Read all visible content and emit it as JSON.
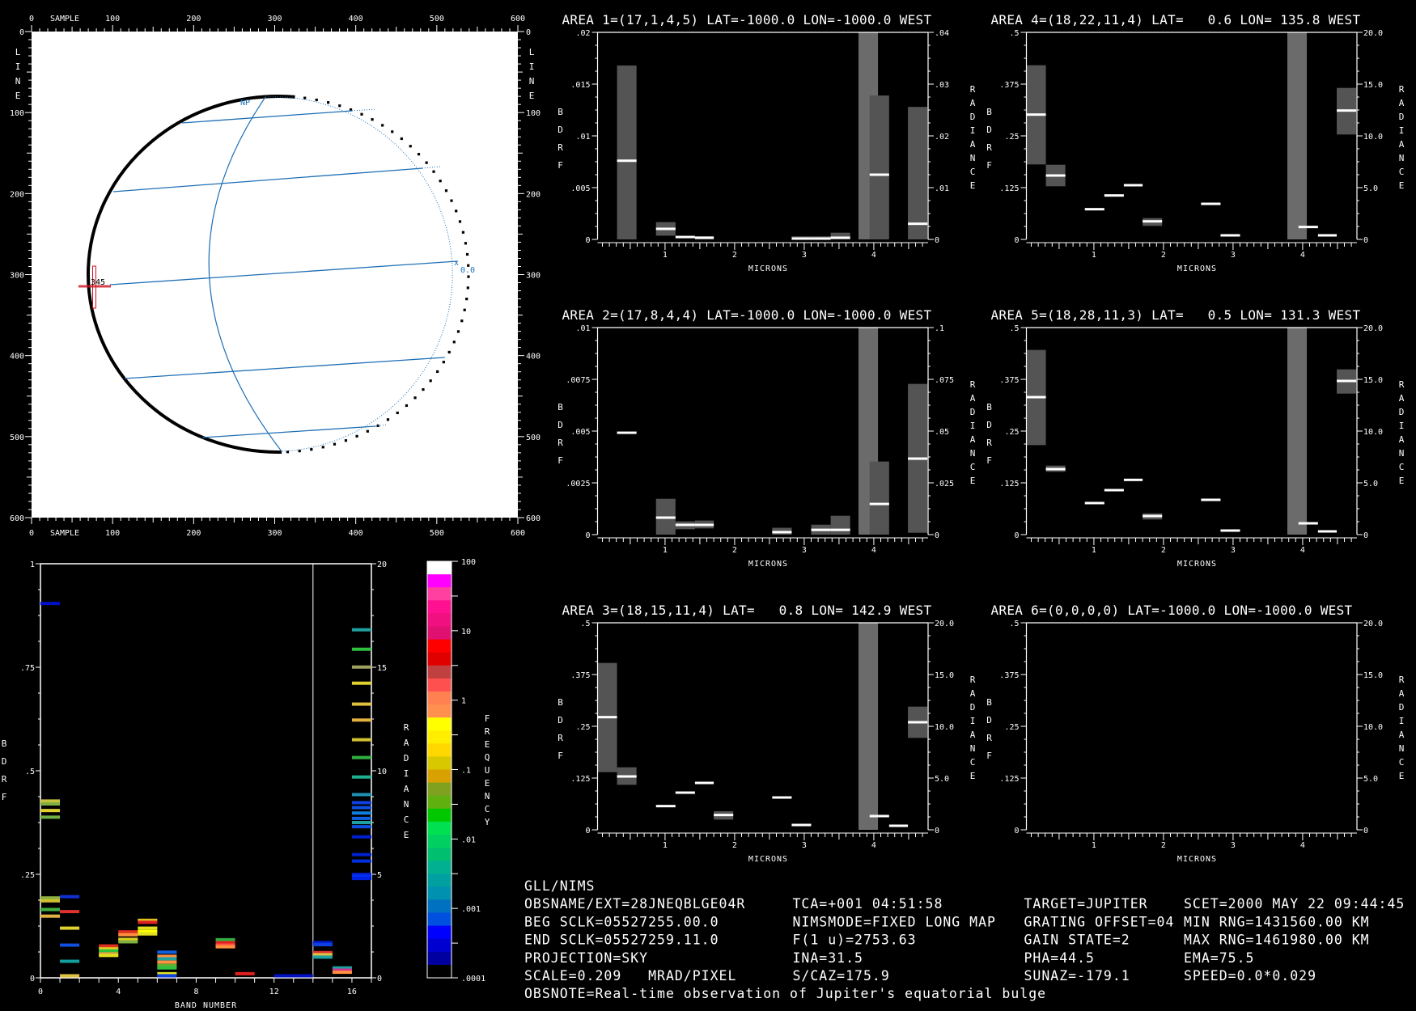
{
  "image_panel": {
    "x_label": "SAMPLE",
    "y_label": "LINE",
    "x_ticks": [
      "0",
      "100",
      "200",
      "300",
      "400",
      "500",
      "600"
    ],
    "y_ticks": [
      "0",
      "100",
      "200",
      "300",
      "400",
      "500",
      "600"
    ],
    "pole_label": "NP",
    "equator_label": "0.0",
    "cursor_label": "345",
    "colors": {
      "background": "#ffffff",
      "limb": "#000000",
      "grid": "#1f6fb5",
      "cursor": "#d01020"
    }
  },
  "histogram": {
    "ylabel": "BDRF",
    "y2label": "RADIANCE",
    "xlabel": "BAND NUMBER",
    "ylim": [
      0,
      1
    ],
    "y2lim": [
      0,
      20
    ],
    "xlim": [
      0,
      17
    ],
    "y_ticks": [
      "0",
      ".25",
      ".5",
      ".75",
      "1"
    ],
    "y2_ticks": [
      "0",
      "5",
      "10",
      "15",
      "20"
    ],
    "x_ticks": [
      "0",
      "4",
      "8",
      "12",
      "16"
    ],
    "radiance_bands_from": 14,
    "bands": [
      {
        "band": 0,
        "stripes": [
          [
            0.904,
            "#0010c8"
          ],
          [
            0.427,
            "#c8c040"
          ],
          [
            0.42,
            "#80b040"
          ],
          [
            0.404,
            "#e0d030"
          ],
          [
            0.388,
            "#70b040"
          ],
          [
            0.193,
            "#90b040"
          ],
          [
            0.186,
            "#d0c030"
          ],
          [
            0.165,
            "#40b040"
          ],
          [
            0.149,
            "#e0b040"
          ]
        ]
      },
      {
        "band": 1,
        "stripes": [
          [
            0.196,
            "#1030d0"
          ],
          [
            0.16,
            "#e03030"
          ],
          [
            0.12,
            "#e0d030"
          ],
          [
            0.079,
            "#1050e0"
          ],
          [
            0.04,
            "#10a0a0"
          ],
          [
            0.005,
            "#e0c040"
          ]
        ]
      },
      {
        "band": 3,
        "stripes": [
          [
            0.077,
            "#e03020"
          ],
          [
            0.07,
            "#e0d020"
          ],
          [
            0.065,
            "#30c040"
          ],
          [
            0.058,
            "#e0a040"
          ],
          [
            0.054,
            "#e0e020"
          ]
        ]
      },
      {
        "band": 4,
        "stripes": [
          [
            0.111,
            "#e03020"
          ],
          [
            0.104,
            "#ff9040"
          ],
          [
            0.093,
            "#e0d020"
          ],
          [
            0.087,
            "#80b040"
          ]
        ]
      },
      {
        "band": 5,
        "stripes": [
          [
            0.139,
            "#e0c020"
          ],
          [
            0.134,
            "#e02020"
          ],
          [
            0.12,
            "#e0e020"
          ],
          [
            0.112,
            "#ffff00"
          ],
          [
            0.106,
            "#e0e020"
          ]
        ]
      },
      {
        "band": 6,
        "stripes": [
          [
            0.062,
            "#1060e0"
          ],
          [
            0.052,
            "#ff9040"
          ],
          [
            0.046,
            "#20a0a0"
          ],
          [
            0.038,
            "#ff9040"
          ],
          [
            0.03,
            "#60b030"
          ],
          [
            0.024,
            "#30c040"
          ],
          [
            0.01,
            "#e0e020"
          ],
          [
            0.005,
            "#1040e0"
          ]
        ]
      },
      {
        "band": 9,
        "stripes": [
          [
            0.092,
            "#30b040"
          ],
          [
            0.085,
            "#e02020"
          ],
          [
            0.079,
            "#ff5040"
          ],
          [
            0.075,
            "#ff9040"
          ]
        ]
      },
      {
        "band": 10,
        "stripes": [
          [
            0.01,
            "#e02020"
          ]
        ]
      },
      {
        "band": 12,
        "stripes": [
          [
            0.005,
            "#0010c0"
          ]
        ]
      },
      {
        "band": 13,
        "stripes": [
          [
            0.005,
            "#0010c0"
          ]
        ]
      },
      {
        "band": 14,
        "stripes": [
          [
            1.7,
            "#0020e0"
          ],
          [
            1.6,
            "#1040e0"
          ],
          [
            1.22,
            "#e03030"
          ],
          [
            1.12,
            "#e0c040"
          ],
          [
            1.0,
            "#20a0a0"
          ]
        ]
      },
      {
        "band": 15,
        "stripes": [
          [
            0.48,
            "#20a0a0"
          ],
          [
            0.37,
            "#d03090"
          ],
          [
            0.27,
            "#ff9040"
          ]
        ]
      },
      {
        "band": 16,
        "stripes": [
          [
            16.81,
            "#20a0a0"
          ],
          [
            15.87,
            "#30c040"
          ],
          [
            15.01,
            "#a0a060"
          ],
          [
            14.23,
            "#e0d030"
          ],
          [
            13.22,
            "#e0c040"
          ],
          [
            12.45,
            "#e0b040"
          ],
          [
            11.5,
            "#d0c030"
          ],
          [
            10.64,
            "#30b040"
          ],
          [
            9.7,
            "#20b090"
          ],
          [
            8.85,
            "#2090b0"
          ],
          [
            8.46,
            "#1040e0"
          ],
          [
            8.22,
            "#1050e0"
          ],
          [
            7.96,
            "#1080e0"
          ],
          [
            7.7,
            "#1060e0"
          ],
          [
            7.5,
            "#20a0a0"
          ],
          [
            7.3,
            "#1050e0"
          ],
          [
            6.81,
            "#0020d0"
          ],
          [
            5.95,
            "#0020d0"
          ],
          [
            5.64,
            "#0030e0"
          ],
          [
            4.99,
            "#0020e0"
          ],
          [
            4.9,
            "#0030f0"
          ],
          [
            4.8,
            "#0020e0"
          ]
        ]
      }
    ]
  },
  "colorbar": {
    "label": "FREQUENCY",
    "scale": "log",
    "ticks": [
      "100",
      "10",
      "1",
      ".1",
      ".01",
      ".001",
      ".0001"
    ],
    "colors": [
      "#ffffff",
      "#ff00ff",
      "#ff40a0",
      "#ff1090",
      "#f01080",
      "#e01070",
      "#ff0000",
      "#e00000",
      "#c04040",
      "#ff5050",
      "#ff8050",
      "#ff9050",
      "#ffff00",
      "#ffee00",
      "#ffd800",
      "#d8c800",
      "#d8a000",
      "#80a020",
      "#60b010",
      "#00c800",
      "#00e050",
      "#00d060",
      "#00c070",
      "#00b090",
      "#00a0a0",
      "#0090b0",
      "#0070c0",
      "#0050e0",
      "#0000ff",
      "#0000d0",
      "#0000a0",
      "#000000"
    ]
  },
  "chart_data": [
    {
      "type": "bar",
      "title": "AREA 1=(17,1,4,5) LAT=-1000.0 LON=-1000.0 WEST",
      "xlabel": "MICRONS",
      "ylabel": "BDRF",
      "y2label": "RADIANCE",
      "xlim": [
        0.03,
        4.78
      ],
      "ylim": [
        0,
        0.02
      ],
      "y2lim": [
        0,
        0.04
      ],
      "x_ticks": [
        "1",
        "2",
        "3",
        "4"
      ],
      "y_ticks": [
        "0",
        ".005",
        ".01",
        ".015",
        ".02"
      ],
      "y2_ticks": [
        "0",
        ".01",
        ".02",
        ".03",
        ".04"
      ],
      "bars": [
        {
          "x": [
            0.31,
            0.59
          ],
          "min": 0,
          "max": 0.0168,
          "mean": 0.0076
        },
        {
          "x": [
            0.87,
            1.15
          ],
          "min": 0.00036,
          "max": 0.00167,
          "mean": 0.00102
        },
        {
          "x": [
            1.15,
            1.43
          ],
          "mean": 0.00023
        },
        {
          "x": [
            1.43,
            1.7
          ],
          "min": 0,
          "max": 0.0003,
          "mean": 0.00016
        },
        {
          "x": [
            2.82,
            3.1
          ],
          "min": 0,
          "max": 0.0003,
          "mean": 8e-05
        },
        {
          "x": [
            3.1,
            3.38
          ],
          "min": 0,
          "max": 0.0003,
          "mean": 8e-05
        },
        {
          "x": [
            3.38,
            3.66
          ],
          "min": 0,
          "max": 0.00065,
          "mean": 0.00016
        },
        {
          "x": [
            3.78,
            4.06
          ],
          "min": 0,
          "max": 0.02,
          "saturated": true
        },
        {
          "x": [
            3.94,
            4.22
          ],
          "min": 0,
          "max": 0.0139,
          "mean": 0.00625
        },
        {
          "x": [
            4.49,
            4.77
          ],
          "min": 0,
          "max": 0.0128,
          "mean": 0.00151
        }
      ]
    },
    {
      "type": "bar",
      "title": "AREA 2=(17,8,4,4) LAT=-1000.0 LON=-1000.0 WEST",
      "xlabel": "MICRONS",
      "ylabel": "BDRF",
      "y2label": "RADIANCE",
      "xlim": [
        0.03,
        4.78
      ],
      "ylim": [
        0,
        0.01
      ],
      "y2lim": [
        0,
        0.1
      ],
      "x_ticks": [
        "1",
        "2",
        "3",
        "4"
      ],
      "y_ticks": [
        "0",
        ".0025",
        ".005",
        ".0075",
        ".01"
      ],
      "y2_ticks": [
        "0",
        ".025",
        ".05",
        ".075",
        ".1"
      ],
      "bars": [
        {
          "x": [
            0.31,
            0.59
          ],
          "mean": 0.00492
        },
        {
          "x": [
            0.87,
            1.15
          ],
          "min": 0,
          "max": 0.00173,
          "mean": 0.00082
        },
        {
          "x": [
            1.15,
            1.43
          ],
          "min": 0.00026,
          "max": 0.00064,
          "mean": 0.00047
        },
        {
          "x": [
            1.43,
            1.7
          ],
          "min": 0.0003,
          "max": 0.00068,
          "mean": 0.00047
        },
        {
          "x": [
            2.54,
            2.82
          ],
          "min": 0,
          "max": 0.00033,
          "mean": 0.00012
        },
        {
          "x": [
            3.1,
            3.38
          ],
          "min": 0,
          "max": 0.00048,
          "mean": 0.00023
        },
        {
          "x": [
            3.38,
            3.66
          ],
          "min": 0,
          "max": 0.00091,
          "mean": 0.00023
        },
        {
          "x": [
            3.78,
            4.06
          ],
          "min": 0,
          "max": 0.01,
          "saturated": true
        },
        {
          "x": [
            3.94,
            4.22
          ],
          "min": 0,
          "max": 0.00353,
          "mean": 0.00148
        },
        {
          "x": [
            4.49,
            4.77
          ],
          "min": 9e-05,
          "max": 0.00728,
          "mean": 0.00367
        }
      ]
    },
    {
      "type": "bar",
      "title": "AREA 3=(18,15,11,4) LAT=   0.8 LON= 142.9 WEST",
      "xlabel": "MICRONS",
      "ylabel": "BDRF",
      "y2label": "RADIANCE",
      "xlim": [
        0.03,
        4.78
      ],
      "ylim": [
        0,
        0.5
      ],
      "y2lim": [
        0,
        20
      ],
      "x_ticks": [
        "1",
        "2",
        "3",
        "4"
      ],
      "y_ticks": [
        "0",
        ".125",
        ".25",
        ".375",
        ".5"
      ],
      "y2_ticks": [
        "0",
        "5.0",
        "10.0",
        "15.0",
        "20.0"
      ],
      "bars": [
        {
          "x": [
            0.03,
            0.31
          ],
          "min": 0.1393,
          "max": 0.403,
          "mean": 0.2721
        },
        {
          "x": [
            0.31,
            0.59
          ],
          "min": 0.1087,
          "max": 0.151,
          "mean": 0.1289
        },
        {
          "x": [
            0.87,
            1.15
          ],
          "mean": 0.0573
        },
        {
          "x": [
            1.15,
            1.43
          ],
          "mean": 0.0898
        },
        {
          "x": [
            1.43,
            1.7
          ],
          "mean": 0.1133
        },
        {
          "x": [
            1.7,
            1.98
          ],
          "min": 0.0247,
          "max": 0.0449,
          "mean": 0.0358
        },
        {
          "x": [
            2.54,
            2.82
          ],
          "mean": 0.0781
        },
        {
          "x": [
            2.82,
            3.1
          ],
          "mean": 0.0117
        },
        {
          "x": [
            3.78,
            4.06
          ],
          "min": 0,
          "max": 0.5,
          "saturated": true
        },
        {
          "x": [
            3.94,
            4.22
          ],
          "mean": 0.0332
        },
        {
          "x": [
            4.22,
            4.49
          ],
          "mean": 0.0098
        },
        {
          "x": [
            4.49,
            4.77
          ],
          "min": 0.222,
          "max": 0.2975,
          "mean": 0.2598
        }
      ]
    },
    {
      "type": "bar",
      "title": "AREA 4=(18,22,11,4) LAT=   0.6 LON= 135.8 WEST",
      "xlabel": "MICRONS",
      "ylabel": "BDRF",
      "y2label": "RADIANCE",
      "xlim": [
        0.03,
        4.78
      ],
      "ylim": [
        0,
        0.5
      ],
      "y2lim": [
        0,
        20
      ],
      "x_ticks": [
        "1",
        "2",
        "3",
        "4"
      ],
      "y_ticks": [
        "0",
        ".125",
        ".25",
        ".375",
        ".5"
      ],
      "y2_ticks": [
        "0",
        "5.0",
        "10.0",
        "15.0",
        "20.0"
      ],
      "bars": [
        {
          "x": [
            0.03,
            0.31
          ],
          "min": 0.181,
          "max": 0.4206,
          "mean": 0.3014
        },
        {
          "x": [
            0.31,
            0.59
          ],
          "min": 0.1283,
          "max": 0.1803,
          "mean": 0.1543
        },
        {
          "x": [
            0.87,
            1.15
          ],
          "mean": 0.0729
        },
        {
          "x": [
            1.15,
            1.43
          ],
          "mean": 0.1061
        },
        {
          "x": [
            1.43,
            1.7
          ],
          "mean": 0.1309
        },
        {
          "x": [
            1.7,
            1.98
          ],
          "min": 0.0326,
          "max": 0.0514,
          "mean": 0.0436
        },
        {
          "x": [
            2.54,
            2.82
          ],
          "mean": 0.0859
        },
        {
          "x": [
            2.82,
            3.1
          ],
          "mean": 0.0098
        },
        {
          "x": [
            3.78,
            4.06
          ],
          "min": 0,
          "max": 0.5,
          "saturated": true
        },
        {
          "x": [
            3.94,
            4.22
          ],
          "mean": 0.03
        },
        {
          "x": [
            4.22,
            4.49
          ],
          "mean": 0.0098
        },
        {
          "x": [
            4.49,
            4.77
          ],
          "min": 0.2533,
          "max": 0.3659,
          "mean": 0.3112
        }
      ]
    },
    {
      "type": "bar",
      "title": "AREA 5=(18,28,11,3) LAT=   0.5 LON= 131.3 WEST",
      "xlabel": "MICRONS",
      "ylabel": "BDRF",
      "y2label": "RADIANCE",
      "xlim": [
        0.03,
        4.78
      ],
      "ylim": [
        0,
        0.5
      ],
      "y2lim": [
        0,
        20
      ],
      "x_ticks": [
        "1",
        "2",
        "3",
        "4"
      ],
      "y_ticks": [
        "0",
        ".125",
        ".25",
        ".375",
        ".5"
      ],
      "y2_ticks": [
        "0",
        "5.0",
        "10.0",
        "15.0",
        "20.0"
      ],
      "bars": [
        {
          "x": [
            0.03,
            0.31
          ],
          "min": 0.2161,
          "max": 0.446,
          "mean": 0.332
        },
        {
          "x": [
            0.31,
            0.59
          ],
          "min": 0.1517,
          "max": 0.1667,
          "mean": 0.1582
        },
        {
          "x": [
            0.87,
            1.15
          ],
          "mean": 0.0762
        },
        {
          "x": [
            1.15,
            1.43
          ],
          "mean": 0.1074
        },
        {
          "x": [
            1.43,
            1.7
          ],
          "mean": 0.1322
        },
        {
          "x": [
            1.7,
            1.98
          ],
          "min": 0.0365,
          "max": 0.0514,
          "mean": 0.0449
        },
        {
          "x": [
            2.54,
            2.82
          ],
          "mean": 0.084
        },
        {
          "x": [
            2.82,
            3.1
          ],
          "mean": 0.0098
        },
        {
          "x": [
            3.78,
            4.06
          ],
          "min": 0,
          "max": 0.5,
          "saturated": true
        },
        {
          "x": [
            3.94,
            4.22
          ],
          "mean": 0.0273
        },
        {
          "x": [
            4.22,
            4.49
          ],
          "mean": 0.0078
        },
        {
          "x": [
            4.49,
            4.77
          ],
          "min": 0.3405,
          "max": 0.3991,
          "mean": 0.3711
        }
      ]
    },
    {
      "type": "bar",
      "title": "AREA 6=(0,0,0,0) LAT=-1000.0 LON=-1000.0 WEST",
      "xlabel": "MICRONS",
      "ylabel": "BDRF",
      "y2label": "RADIANCE",
      "xlim": [
        0.03,
        4.78
      ],
      "ylim": [
        0,
        0.5
      ],
      "y2lim": [
        0,
        20
      ],
      "x_ticks": [
        "1",
        "2",
        "3",
        "4"
      ],
      "y_ticks": [
        "0",
        ".125",
        ".25",
        ".375",
        ".5"
      ],
      "y2_ticks": [
        "0",
        "5.0",
        "10.0",
        "15.0",
        "20.0"
      ],
      "bars": []
    }
  ],
  "info": {
    "rows": [
      [
        "GLL/NIMS"
      ],
      [
        "OBSNAME/EXT=28JNEQBLGE04R",
        "TCA=+001 04:51:58",
        "TARGET=JUPITER",
        "SCET=2000 MAY 22 09:44:45"
      ],
      [
        "BEG SCLK=05527255.00.0",
        "NIMSMODE=FIXED LONG MAP",
        "GRATING OFFSET=04",
        "MIN RNG=1431560.00 KM"
      ],
      [
        "END SCLK=05527259.11.0",
        "F(1 u)=2753.63",
        "GAIN STATE=2",
        "MAX RNG=1461980.00 KM"
      ],
      [
        "PROJECTION=SKY",
        "INA=31.5",
        "PHA=44.5",
        "EMA=75.5"
      ],
      [
        "SCALE=0.209   MRAD/PIXEL",
        "S/CAZ=175.9",
        "SUNAZ=-179.1",
        "SPEED=0.0*0.029"
      ],
      [
        "OBSNOTE=Real-time observation of Jupiter's equatorial bulge"
      ]
    ]
  }
}
